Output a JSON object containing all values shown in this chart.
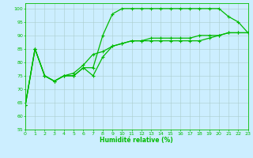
{
  "xlabel": "Humidité relative (%)",
  "xlim": [
    0,
    23
  ],
  "ylim": [
    55,
    102
  ],
  "yticks": [
    55,
    60,
    65,
    70,
    75,
    80,
    85,
    90,
    95,
    100
  ],
  "xticks": [
    0,
    1,
    2,
    3,
    4,
    5,
    6,
    7,
    8,
    9,
    10,
    11,
    12,
    13,
    14,
    15,
    16,
    17,
    18,
    19,
    20,
    21,
    22,
    23
  ],
  "bg_color": "#cceeff",
  "grid_color": "#aacccc",
  "line_color": "#00bb00",
  "line_width": 0.9,
  "marker": "+",
  "marker_size": 3.5,
  "marker_lw": 0.8,
  "curve1_x": [
    0,
    1,
    2,
    3,
    4,
    5,
    6,
    7,
    8,
    9,
    10,
    11,
    12,
    13,
    14,
    15,
    16,
    17,
    18,
    19,
    20,
    21,
    22,
    23
  ],
  "curve1_y": [
    64,
    85,
    75,
    73,
    75,
    75,
    78,
    78,
    90,
    98,
    100,
    100,
    100,
    100,
    100,
    100,
    100,
    100,
    100,
    100,
    100,
    97,
    95,
    91
  ],
  "curve2_x": [
    0,
    1,
    2,
    3,
    4,
    5,
    6,
    7,
    8,
    9,
    10,
    11,
    12,
    13,
    14,
    15,
    16,
    17,
    18,
    19,
    20,
    21,
    22,
    23
  ],
  "curve2_y": [
    64,
    85,
    75,
    73,
    75,
    76,
    79,
    83,
    84,
    86,
    87,
    88,
    88,
    89,
    89,
    89,
    89,
    89,
    90,
    90,
    90,
    91,
    91,
    91
  ],
  "curve3_x": [
    0,
    1,
    2,
    3,
    4,
    5,
    6,
    7,
    8,
    9,
    10,
    11,
    12,
    13,
    14,
    15,
    16,
    17,
    18,
    19,
    20,
    21,
    22,
    23
  ],
  "curve3_y": [
    64,
    85,
    75,
    73,
    75,
    75,
    78,
    75,
    82,
    86,
    87,
    88,
    88,
    88,
    88,
    88,
    88,
    88,
    88,
    89,
    90,
    91,
    91,
    91
  ],
  "tick_fontsize": 4.5,
  "xlabel_fontsize": 5.5,
  "spine_color": "#00bb00",
  "spine_lw": 0.6
}
